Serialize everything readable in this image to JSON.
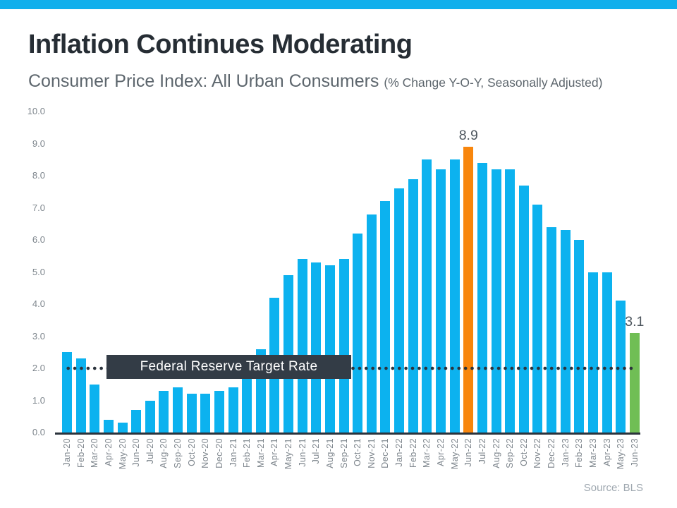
{
  "page": {
    "title": "Inflation Continues Moderating",
    "subtitle": "Consumer Price Index: All Urban Consumers",
    "subtitle_note": "(% Change Y-O-Y, Seasonally Adjusted)",
    "source": "Source: BLS"
  },
  "colors": {
    "banner": "#10AFEC",
    "bar": "#0CB2EF",
    "highlight_orange": "#F8860D",
    "highlight_green": "#70BE55",
    "axis_line": "#2B333C",
    "title_text": "#262D34",
    "subtitle_text": "#5D666D",
    "tick_text": "#7E868D",
    "annotation_text": "#4D565E",
    "source_text": "#9FA8B0",
    "ref_box_bg": "#333C46",
    "ref_box_text": "#FFFFFF",
    "ref_dots": "#2B333C"
  },
  "chart_data": {
    "type": "bar",
    "title": "Inflation Continues Moderating",
    "subtitle": "Consumer Price Index: All Urban Consumers (% Change Y-O-Y, Seasonally Adjusted)",
    "xlabel": "",
    "ylabel": "",
    "ylim": [
      0,
      10
    ],
    "grid": false,
    "legend": false,
    "y_tick_labels": [
      "0.0",
      "1.0",
      "2.0",
      "3.0",
      "4.0",
      "5.0",
      "6.0",
      "7.0",
      "8.0",
      "9.0",
      "10.0"
    ],
    "categories": [
      "Jan-20",
      "Feb-20",
      "Mar-20",
      "Apr-20",
      "May-20",
      "Jun-20",
      "Jul-20",
      "Aug-20",
      "Sep-20",
      "Oct-20",
      "Nov-20",
      "Dec-20",
      "Jan-21",
      "Feb-21",
      "Mar-21",
      "Apr-21",
      "May-21",
      "Jun-21",
      "Jul-21",
      "Aug-21",
      "Sep-21",
      "Oct-21",
      "Nov-21",
      "Dec-21",
      "Jan-22",
      "Feb-22",
      "Mar-22",
      "Apr-22",
      "May-22",
      "Jun-22",
      "Jul-22",
      "Aug-22",
      "Sep-22",
      "Oct-22",
      "Nov-22",
      "Dec-22",
      "Jan-23",
      "Feb-23",
      "Mar-23",
      "Apr-23",
      "May-23",
      "Jun-23"
    ],
    "values": [
      2.5,
      2.3,
      1.5,
      0.4,
      0.3,
      0.7,
      1.0,
      1.3,
      1.4,
      1.2,
      1.2,
      1.3,
      1.4,
      1.7,
      2.6,
      4.2,
      4.9,
      5.4,
      5.3,
      5.2,
      5.4,
      6.2,
      6.8,
      7.2,
      7.6,
      7.9,
      8.5,
      8.2,
      8.5,
      8.9,
      8.4,
      8.2,
      8.2,
      7.7,
      7.1,
      6.4,
      6.3,
      6.0,
      5.0,
      5.0,
      4.1,
      3.1
    ],
    "bar_color_overrides": [
      {
        "category": "Jun-22",
        "color_key": "highlight_orange"
      },
      {
        "category": "Jun-23",
        "color_key": "highlight_green"
      }
    ],
    "annotations": [
      {
        "category": "Jun-22",
        "text": "8.9"
      },
      {
        "category": "Jun-23",
        "text": "3.1"
      }
    ],
    "reference_line": {
      "value": 2.0,
      "style": "dotted",
      "label": "Federal Reserve Target Rate"
    }
  }
}
